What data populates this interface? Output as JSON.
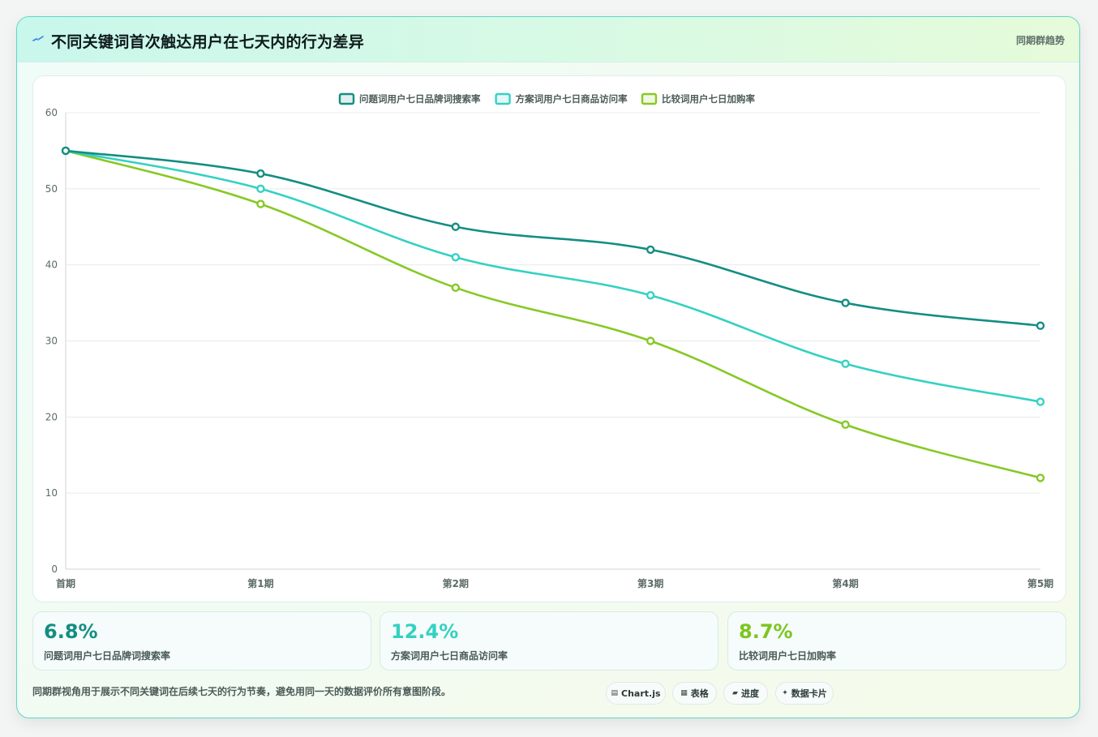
{
  "header": {
    "title": "不同关键词首次触达用户在七天内的行为差异",
    "tag": "同期群趋势",
    "icon": "pulse-icon"
  },
  "chart_data": {
    "type": "line",
    "title": "",
    "xlabel": "",
    "ylabel": "",
    "categories": [
      "首期",
      "第1期",
      "第2期",
      "第3期",
      "第4期",
      "第5期"
    ],
    "ylim": [
      0,
      60
    ],
    "yticks": [
      0,
      10,
      20,
      30,
      40,
      50,
      60
    ],
    "grid": true,
    "legend_position": "top-center",
    "series": [
      {
        "name": "问题词用户七日品牌词搜索率",
        "color": "#138e82",
        "values": [
          55,
          52,
          45,
          42,
          35,
          32
        ]
      },
      {
        "name": "方案词用户七日商品访问率",
        "color": "#34d1c2",
        "values": [
          55,
          50,
          41,
          36,
          27,
          22
        ]
      },
      {
        "name": "比较词用户七日加购率",
        "color": "#86c924",
        "values": [
          55,
          48,
          37,
          30,
          19,
          12
        ]
      }
    ]
  },
  "kpis": [
    {
      "value": "6.8%",
      "label": "问题词用户七日品牌词搜索率",
      "color": "#138e82"
    },
    {
      "value": "12.4%",
      "label": "方案词用户七日商品访问率",
      "color": "#34d1c2"
    },
    {
      "value": "8.7%",
      "label": "比较词用户七日加购率",
      "color": "#7cc61f"
    }
  ],
  "footer": {
    "note": "同期群视角用于展示不同关键词在后续七天的行为节奏，避免用同一天的数据评价所有意图阶段。",
    "pills": [
      {
        "icon": "▤",
        "label": "Chart.js",
        "icon_name": "chart-icon"
      },
      {
        "icon": "▦",
        "label": "表格",
        "icon_name": "table-icon"
      },
      {
        "icon": "▰",
        "label": "进度",
        "icon_name": "progress-icon"
      },
      {
        "icon": "✦",
        "label": "数据卡片",
        "icon_name": "card-icon"
      }
    ]
  }
}
